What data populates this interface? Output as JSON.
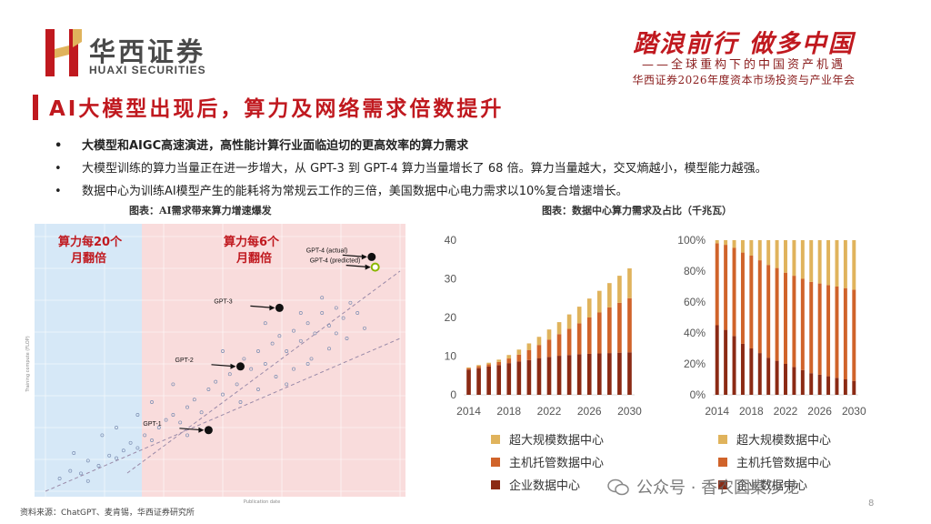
{
  "header": {
    "company_cn": "华西证券",
    "company_en": "HUAXI SECURITIES",
    "slogan": "踏浪前行  做多中国",
    "sub_slogan": "——全球重构下的中国资产机遇",
    "conference": "华西证券2026年度资本市场投资与产业年会"
  },
  "page_title": "AI大模型出现后，算力及网络需求倍数提升",
  "bullets": [
    "大模型和AIGC高速演进，高性能计算行业面临迫切的更高效率的算力需求",
    "大模型训练的算力当量正在进一步增大，从 GPT-3 到 GPT-4 算力当量增长了 68 倍。算力当量越大，交叉熵越小，模型能力越强。",
    "数据中心为训练AI模型产生的能耗将为常规云工作的三倍，美国数据中心电力需求以10%复合增速增长。"
  ],
  "caption_left": "图表：AI需求带来算力增速爆发",
  "caption_right": "图表：数据中心算力需求及占比（千兆瓦）",
  "source": "资料来源：ChatGPT、麦肯锡，华西证券研究所",
  "page_number": "8",
  "watermark": "公众号 · 香农圆桌沙龙",
  "colors": {
    "brand_red": "#c0191f",
    "series_hyperscale": "#e0b35c",
    "series_colocation": "#d0632a",
    "series_enterprise": "#8b2a14"
  },
  "chart_data": [
    {
      "type": "scatter",
      "title": "",
      "xlabel": "Publication date",
      "ylabel": "Training compute (FLOP)",
      "regions": [
        {
          "label": "算力每20个月翻倍",
          "color": "#d6e8f7"
        },
        {
          "label": "算力每6个月翻倍",
          "color": "#f9dcdc"
        }
      ],
      "annotations": [
        {
          "label": "GPT-1",
          "x": 0.46,
          "y": 0.24
        },
        {
          "label": "GPT-2",
          "x": 0.55,
          "y": 0.49
        },
        {
          "label": "GPT-3",
          "x": 0.66,
          "y": 0.72
        },
        {
          "label": "GPT-4 (predicted)",
          "x": 0.93,
          "y": 0.88,
          "hollow": true
        },
        {
          "label": "GPT-4 (actual)",
          "x": 0.92,
          "y": 0.92
        }
      ],
      "background_points": [
        [
          0.04,
          0.05
        ],
        [
          0.07,
          0.08
        ],
        [
          0.1,
          0.07
        ],
        [
          0.12,
          0.12
        ],
        [
          0.15,
          0.1
        ],
        [
          0.18,
          0.14
        ],
        [
          0.2,
          0.13
        ],
        [
          0.22,
          0.16
        ],
        [
          0.24,
          0.19
        ],
        [
          0.26,
          0.17
        ],
        [
          0.28,
          0.22
        ],
        [
          0.3,
          0.2
        ],
        [
          0.32,
          0.25
        ],
        [
          0.34,
          0.28
        ],
        [
          0.36,
          0.3
        ],
        [
          0.38,
          0.27
        ],
        [
          0.4,
          0.33
        ],
        [
          0.42,
          0.36
        ],
        [
          0.44,
          0.31
        ],
        [
          0.46,
          0.4
        ],
        [
          0.48,
          0.43
        ],
        [
          0.5,
          0.38
        ],
        [
          0.52,
          0.46
        ],
        [
          0.54,
          0.42
        ],
        [
          0.56,
          0.52
        ],
        [
          0.58,
          0.48
        ],
        [
          0.6,
          0.55
        ],
        [
          0.62,
          0.5
        ],
        [
          0.64,
          0.58
        ],
        [
          0.66,
          0.61
        ],
        [
          0.68,
          0.55
        ],
        [
          0.7,
          0.63
        ],
        [
          0.72,
          0.59
        ],
        [
          0.74,
          0.66
        ],
        [
          0.76,
          0.62
        ],
        [
          0.78,
          0.7
        ],
        [
          0.8,
          0.65
        ],
        [
          0.82,
          0.72
        ],
        [
          0.84,
          0.68
        ],
        [
          0.86,
          0.74
        ],
        [
          0.6,
          0.4
        ],
        [
          0.65,
          0.45
        ],
        [
          0.7,
          0.48
        ],
        [
          0.75,
          0.52
        ],
        [
          0.8,
          0.56
        ],
        [
          0.85,
          0.6
        ],
        [
          0.72,
          0.7
        ],
        [
          0.78,
          0.76
        ],
        [
          0.5,
          0.55
        ],
        [
          0.55,
          0.35
        ],
        [
          0.62,
          0.66
        ],
        [
          0.68,
          0.42
        ],
        [
          0.74,
          0.5
        ],
        [
          0.82,
          0.62
        ],
        [
          0.88,
          0.7
        ],
        [
          0.9,
          0.64
        ],
        [
          0.36,
          0.42
        ],
        [
          0.4,
          0.22
        ],
        [
          0.3,
          0.35
        ],
        [
          0.26,
          0.3
        ],
        [
          0.2,
          0.25
        ],
        [
          0.16,
          0.22
        ],
        [
          0.12,
          0.04
        ],
        [
          0.08,
          0.15
        ]
      ]
    },
    {
      "type": "bar",
      "stacked": true,
      "categories": [
        "2014",
        "2015",
        "2016",
        "2017",
        "2018",
        "2019",
        "2020",
        "2021",
        "2022",
        "2023",
        "2024",
        "2025",
        "2026",
        "2027",
        "2028",
        "2029",
        "2030"
      ],
      "x_tick_labels": [
        "2014",
        "2018",
        "2022",
        "2026",
        "2030"
      ],
      "ylim": [
        0,
        40
      ],
      "yticks": [
        0,
        10,
        20,
        30,
        40
      ],
      "series": [
        {
          "name": "企业数据中心",
          "values": [
            6.5,
            6.9,
            7.3,
            7.7,
            8.2,
            8.6,
            9.0,
            9.5,
            9.8,
            10.1,
            10.3,
            10.5,
            10.6,
            10.7,
            10.8,
            10.9,
            11.0
          ]
        },
        {
          "name": "主机托管数据中心",
          "values": [
            0.4,
            0.5,
            0.6,
            0.8,
            1.2,
            1.8,
            2.6,
            3.4,
            4.5,
            5.6,
            6.8,
            8.0,
            9.4,
            10.6,
            11.8,
            12.9,
            14.0
          ]
        },
        {
          "name": "超大规模数据中心",
          "values": [
            0.2,
            0.3,
            0.4,
            0.6,
            0.9,
            1.3,
            1.7,
            2.1,
            2.6,
            3.1,
            3.7,
            4.3,
            4.9,
            5.6,
            6.3,
            7.0,
            7.7
          ]
        }
      ]
    },
    {
      "type": "bar",
      "stacked": true,
      "categories": [
        "2014",
        "2015",
        "2016",
        "2017",
        "2018",
        "2019",
        "2020",
        "2021",
        "2022",
        "2023",
        "2024",
        "2025",
        "2026",
        "2027",
        "2028",
        "2029",
        "2030"
      ],
      "x_tick_labels": [
        "2014",
        "2018",
        "2022",
        "2026",
        "2030"
      ],
      "ylim": [
        0,
        100
      ],
      "yticks": [
        "0%",
        "20%",
        "40%",
        "60%",
        "80%",
        "100%"
      ],
      "series": [
        {
          "name": "企业数据中心",
          "values": [
            45,
            42,
            38,
            33,
            30,
            27,
            24,
            22,
            20,
            18,
            16,
            14,
            13,
            12,
            11,
            10,
            9
          ]
        },
        {
          "name": "主机托管数据中心",
          "values": [
            53,
            55,
            57,
            59,
            60,
            60,
            60,
            60,
            59,
            59,
            59,
            59,
            59,
            59,
            59,
            59,
            59
          ]
        },
        {
          "name": "超大规模数据中心",
          "values": [
            2,
            3,
            5,
            8,
            10,
            13,
            16,
            18,
            21,
            23,
            25,
            27,
            28,
            29,
            30,
            31,
            32
          ]
        }
      ]
    }
  ]
}
